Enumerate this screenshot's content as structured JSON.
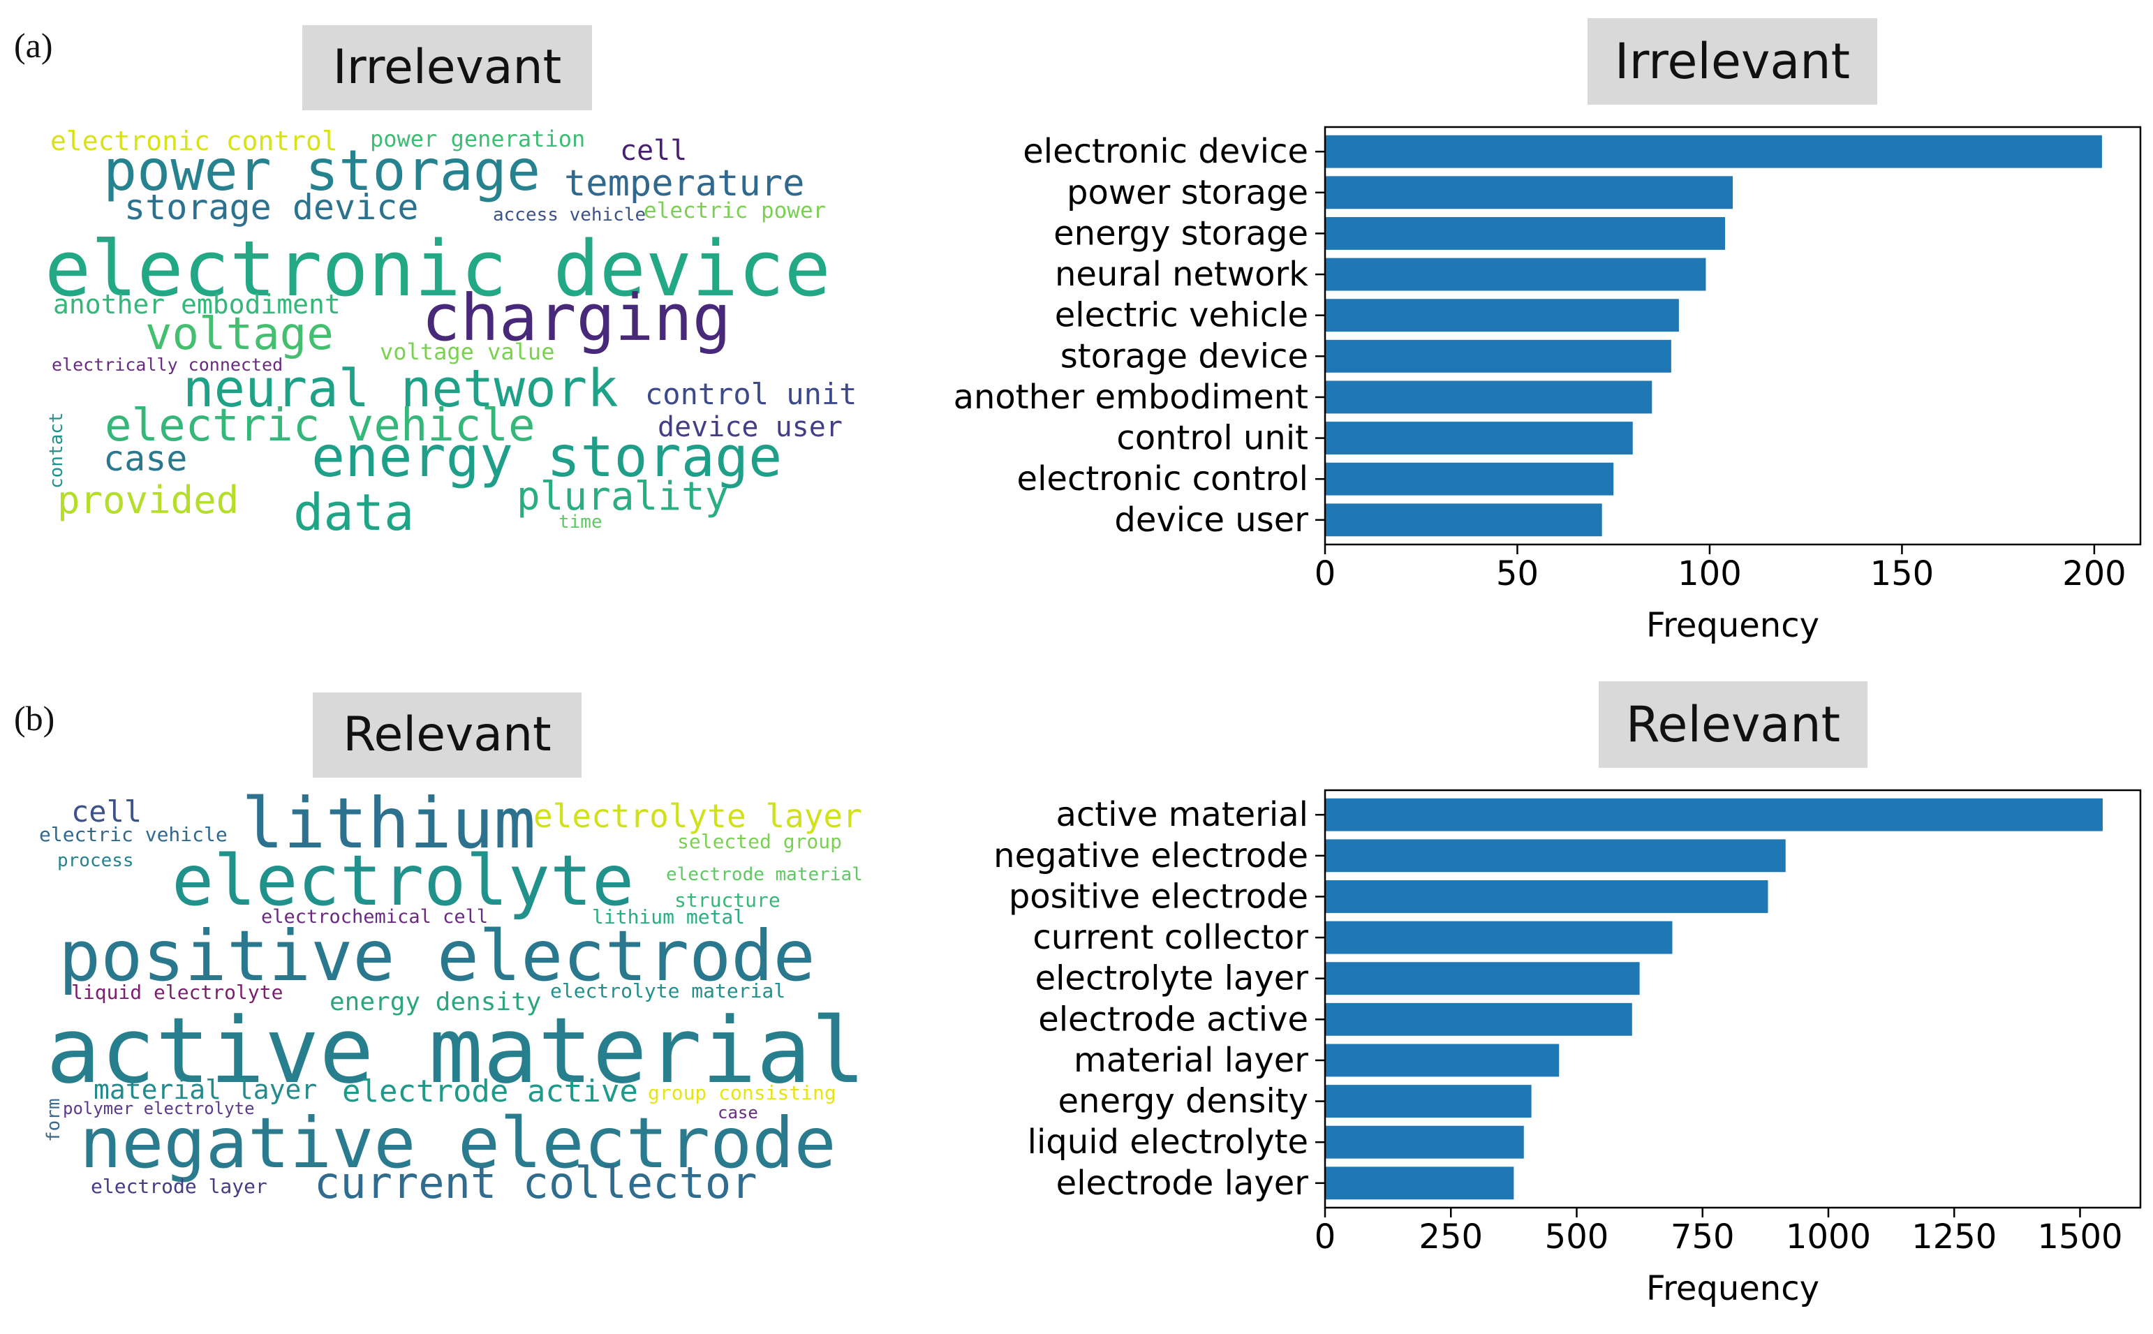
{
  "panels": {
    "a": {
      "tag": "(a)",
      "cloud_title": "Irrelevant",
      "chart_title": "Irrelevant"
    },
    "b": {
      "tag": "(b)",
      "cloud_title": "Relevant",
      "chart_title": "Relevant"
    }
  },
  "wordclouds": {
    "a": [
      {
        "text": "electronic control",
        "color": "#d8e219"
      },
      {
        "text": "power generation",
        "color": "#3dbc74"
      },
      {
        "text": "cell",
        "color": "#481f70"
      },
      {
        "text": "power storage",
        "color": "#26828e"
      },
      {
        "text": "temperature",
        "color": "#31688e"
      },
      {
        "text": "storage device",
        "color": "#2c728e"
      },
      {
        "text": "access vehicle",
        "color": "#3b528b"
      },
      {
        "text": "electric power",
        "color": "#7ad151"
      },
      {
        "text": "electronic device",
        "color": "#22a884"
      },
      {
        "text": "another embodiment",
        "color": "#35b779"
      },
      {
        "text": "charging",
        "color": "#482878"
      },
      {
        "text": "voltage",
        "color": "#44bf70"
      },
      {
        "text": "voltage value",
        "color": "#7ad151"
      },
      {
        "text": "electrically connected",
        "color": "#6a2a80"
      },
      {
        "text": "neural network",
        "color": "#1fa187"
      },
      {
        "text": "control unit",
        "color": "#3e4989"
      },
      {
        "text": "electric vehicle",
        "color": "#35b779"
      },
      {
        "text": "device user",
        "color": "#433e85"
      },
      {
        "text": "case",
        "color": "#2a788e"
      },
      {
        "text": "energy storage",
        "color": "#1f9e89"
      },
      {
        "text": "contact",
        "color": "#21918c"
      },
      {
        "text": "provided",
        "color": "#b5de2b"
      },
      {
        "text": "data",
        "color": "#20a486"
      },
      {
        "text": "plurality",
        "color": "#29af7f"
      },
      {
        "text": "time",
        "color": "#5ec962"
      }
    ],
    "b": [
      {
        "text": "cell",
        "color": "#3b528b"
      },
      {
        "text": "lithium",
        "color": "#2c728e"
      },
      {
        "text": "electrolyte layer",
        "color": "#d0e11c"
      },
      {
        "text": "electric vehicle",
        "color": "#31688e"
      },
      {
        "text": "selected group",
        "color": "#7ad151"
      },
      {
        "text": "process",
        "color": "#26828e"
      },
      {
        "text": "electrolyte",
        "color": "#21918c"
      },
      {
        "text": "electrode material",
        "color": "#5ec962"
      },
      {
        "text": "structure",
        "color": "#35b779"
      },
      {
        "text": "electrochemical cell",
        "color": "#6a2a80"
      },
      {
        "text": "lithium metal",
        "color": "#29af7f"
      },
      {
        "text": "positive electrode",
        "color": "#2a788e"
      },
      {
        "text": "liquid electrolyte",
        "color": "#7a1f6e"
      },
      {
        "text": "energy density",
        "color": "#2ca67f"
      },
      {
        "text": "electrolyte material",
        "color": "#20908d"
      },
      {
        "text": "active material",
        "color": "#277f8e"
      },
      {
        "text": "material layer",
        "color": "#238a8d"
      },
      {
        "text": "electrode active",
        "color": "#1f9a8a"
      },
      {
        "text": "group consisting",
        "color": "#e5e419"
      },
      {
        "text": "polymer electrolyte",
        "color": "#5b3a8c"
      },
      {
        "text": "case",
        "color": "#6a2a80"
      },
      {
        "text": "form",
        "color": "#3e6a8e"
      },
      {
        "text": "negative electrode",
        "color": "#2a7b8e"
      },
      {
        "text": "current collector",
        "color": "#2f6c8e"
      },
      {
        "text": "electrode layer",
        "color": "#4a3a86"
      }
    ]
  },
  "chart_data": [
    {
      "type": "bar",
      "orientation": "horizontal",
      "title": "Irrelevant",
      "xlabel": "Frequency",
      "ylabel": "",
      "xlim": [
        0,
        212
      ],
      "xticks": [
        0,
        50,
        100,
        150,
        200
      ],
      "bar_color": "#1f77b4",
      "categories": [
        "electronic device",
        "power storage",
        "energy storage",
        "neural network",
        "electric vehicle",
        "storage device",
        "another embodiment",
        "control unit",
        "electronic control",
        "device user"
      ],
      "values": [
        202,
        106,
        104,
        99,
        92,
        90,
        85,
        80,
        75,
        72
      ]
    },
    {
      "type": "bar",
      "orientation": "horizontal",
      "title": "Relevant",
      "xlabel": "Frequency",
      "ylabel": "",
      "xlim": [
        0,
        1620
      ],
      "xticks": [
        0,
        250,
        500,
        750,
        1000,
        1250,
        1500
      ],
      "bar_color": "#1f77b4",
      "categories": [
        "active material",
        "negative electrode",
        "positive electrode",
        "current collector",
        "electrolyte layer",
        "electrode active",
        "material layer",
        "energy density",
        "liquid electrolyte",
        "electrode layer"
      ],
      "values": [
        1545,
        915,
        880,
        690,
        625,
        610,
        465,
        410,
        395,
        375
      ]
    }
  ]
}
